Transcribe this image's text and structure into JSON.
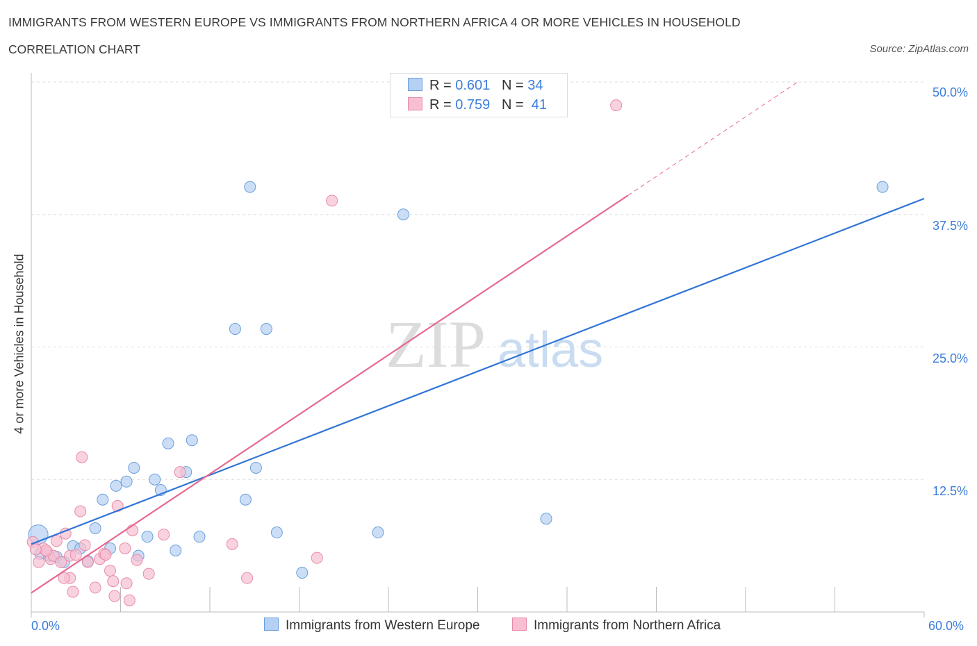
{
  "title": "IMMIGRANTS FROM WESTERN EUROPE VS IMMIGRANTS FROM NORTHERN AFRICA 4 OR MORE VEHICLES IN HOUSEHOLD",
  "subtitle": "CORRELATION CHART",
  "source": "Source: ZipAtlas.com",
  "watermark": "ZIPatlas",
  "chart_data": {
    "type": "scatter",
    "xlabel": "",
    "ylabel": "4 or more Vehicles in Household",
    "xlim": [
      0,
      60
    ],
    "ylim": [
      0,
      50
    ],
    "x_tick_labels": [
      "0.0%",
      "60.0%"
    ],
    "y_tick_labels": [
      "50.0%",
      "37.5%",
      "25.0%",
      "12.5%"
    ],
    "y_ticks": [
      50,
      37.5,
      25,
      12.5
    ],
    "grid": true,
    "legend": {
      "position": "top-center",
      "entries": [
        {
          "r_label": "R =",
          "r": "0.601",
          "n_label": "N =",
          "n": "34"
        },
        {
          "r_label": "R =",
          "r": "0.759",
          "n_label": "N =",
          "n": "41"
        }
      ]
    },
    "series": [
      {
        "name": "Immigrants from Western Europe",
        "color": "#6a9fdd",
        "fill": "#b5d0f2",
        "line_color": "#2f74d6",
        "trend": {
          "x0": 0,
          "y0": 6.4,
          "x1": 60,
          "y1": 39.0
        },
        "points": [
          [
            0.47,
            7.3,
            "L"
          ],
          [
            0.6,
            5.5
          ],
          [
            1.2,
            5.3
          ],
          [
            1.7,
            5.2
          ],
          [
            2.2,
            4.7
          ],
          [
            2.8,
            6.2
          ],
          [
            3.3,
            6.0
          ],
          [
            3.8,
            4.8
          ],
          [
            4.3,
            7.9
          ],
          [
            4.8,
            10.6
          ],
          [
            5.3,
            6.0
          ],
          [
            5.7,
            11.9
          ],
          [
            6.4,
            12.3
          ],
          [
            6.9,
            13.6
          ],
          [
            7.2,
            5.3
          ],
          [
            7.8,
            7.1
          ],
          [
            8.3,
            12.5
          ],
          [
            8.7,
            11.5
          ],
          [
            9.2,
            15.9
          ],
          [
            9.7,
            5.8
          ],
          [
            10.4,
            13.2
          ],
          [
            10.8,
            16.2
          ],
          [
            11.3,
            7.1
          ],
          [
            13.7,
            26.7
          ],
          [
            14.4,
            10.6
          ],
          [
            14.7,
            40.1
          ],
          [
            15.1,
            13.6
          ],
          [
            15.8,
            26.7
          ],
          [
            16.5,
            7.5
          ],
          [
            18.2,
            3.7
          ],
          [
            23.3,
            7.5
          ],
          [
            25.0,
            37.5
          ],
          [
            34.6,
            8.8
          ],
          [
            57.2,
            40.1
          ]
        ]
      },
      {
        "name": "Immigrants from Northern Africa",
        "color": "#e88aa8",
        "fill": "#f7bfd1",
        "line_color": "#e8688f",
        "trend": {
          "x0": 0,
          "y0": 1.8,
          "x1": 40.1,
          "y1": 39.3,
          "dash_to_x": 51.5,
          "dash_to_y": 50
        },
        "points": [
          [
            0.1,
            6.6
          ],
          [
            0.5,
            4.7
          ],
          [
            0.8,
            6.0
          ],
          [
            1.1,
            5.6
          ],
          [
            1.3,
            5.0
          ],
          [
            1.5,
            5.3
          ],
          [
            1.7,
            6.7
          ],
          [
            2.0,
            4.7
          ],
          [
            2.3,
            7.4
          ],
          [
            2.6,
            5.3
          ],
          [
            2.8,
            1.9
          ],
          [
            2.6,
            3.2
          ],
          [
            3.0,
            5.4
          ],
          [
            3.3,
            9.5
          ],
          [
            3.4,
            14.6
          ],
          [
            3.6,
            6.3
          ],
          [
            3.8,
            4.7
          ],
          [
            4.3,
            2.3
          ],
          [
            4.6,
            5.0
          ],
          [
            4.9,
            5.5
          ],
          [
            5.0,
            5.4
          ],
          [
            5.3,
            3.9
          ],
          [
            5.5,
            2.9
          ],
          [
            5.6,
            1.5
          ],
          [
            5.8,
            10.0
          ],
          [
            6.3,
            6.0
          ],
          [
            6.4,
            2.7
          ],
          [
            6.6,
            1.1
          ],
          [
            6.8,
            7.7
          ],
          [
            7.1,
            4.9
          ],
          [
            7.9,
            3.6
          ],
          [
            8.9,
            7.3
          ],
          [
            10.0,
            13.2
          ],
          [
            13.5,
            6.4
          ],
          [
            14.5,
            3.2
          ],
          [
            19.2,
            5.1
          ],
          [
            20.2,
            38.8
          ],
          [
            39.3,
            47.8
          ],
          [
            1.0,
            5.8
          ],
          [
            2.2,
            3.2
          ],
          [
            0.3,
            5.9
          ]
        ]
      }
    ]
  }
}
